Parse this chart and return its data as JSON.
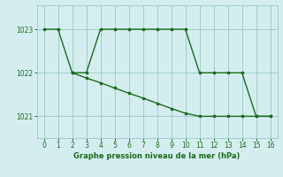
{
  "line1_x": [
    0,
    1,
    2,
    3,
    4,
    5,
    6,
    7,
    8,
    9,
    10,
    11,
    12,
    13,
    14,
    15,
    16
  ],
  "line1_y": [
    1023,
    1023,
    1022,
    1022,
    1023,
    1023,
    1023,
    1023,
    1023,
    1023,
    1023,
    1022,
    1022,
    1022,
    1022,
    1021,
    1021
  ],
  "line2_x": [
    2,
    3,
    4,
    5,
    6,
    7,
    8,
    9,
    10,
    11,
    12,
    13,
    14,
    15,
    16
  ],
  "line2_y": [
    1022.0,
    1021.88,
    1021.77,
    1021.65,
    1021.53,
    1021.42,
    1021.3,
    1021.18,
    1021.07,
    1021.0,
    1021.0,
    1021.0,
    1021.0,
    1021.0,
    1021.0
  ],
  "line_color": "#1a6b1a",
  "marker": "s",
  "markersize": 2.0,
  "bg_color": "#d4eef0",
  "grid_color": "#a0cccc",
  "xlabel": "Graphe pression niveau de la mer (hPa)",
  "xlim": [
    -0.5,
    16.5
  ],
  "ylim": [
    1020.5,
    1023.55
  ],
  "yticks": [
    1021,
    1022,
    1023
  ],
  "xticks": [
    0,
    1,
    2,
    3,
    4,
    5,
    6,
    7,
    8,
    9,
    10,
    11,
    12,
    13,
    14,
    15,
    16
  ],
  "tick_color": "#1a6b1a",
  "xlabel_color": "#1a6b1a",
  "linewidth": 1.0
}
